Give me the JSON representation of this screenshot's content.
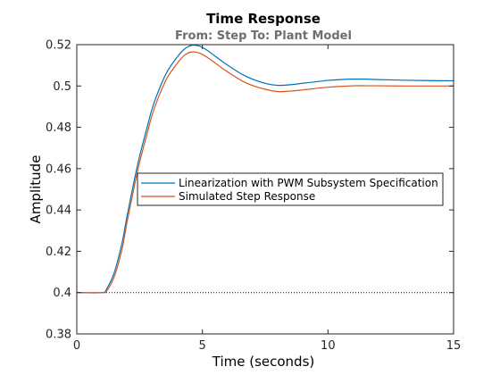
{
  "chart_data": {
    "type": "line",
    "title": "Time Response",
    "subtitle": "From: Step  To: Plant Model",
    "xlabel": "Time (seconds)",
    "ylabel": "Amplitude",
    "xlim": [
      0,
      15
    ],
    "ylim": [
      0.38,
      0.52
    ],
    "xticks": [
      0,
      5,
      10,
      15
    ],
    "xtick_labels": [
      "0",
      "5",
      "10",
      "15"
    ],
    "yticks": [
      0.38,
      0.4,
      0.42,
      0.44,
      0.46,
      0.48,
      0.5,
      0.52
    ],
    "ytick_labels": [
      "0.38",
      "0.4",
      "0.42",
      "0.44",
      "0.46",
      "0.48",
      "0.5",
      "0.52"
    ],
    "grid": false,
    "legend_position": "center-right",
    "baseline": {
      "y": 0.4,
      "style": "dotted",
      "color": "#000000"
    },
    "series": [
      {
        "name": "Linearization with PWM Subsystem Specification",
        "color": "#0072bd",
        "x": [
          0,
          1.0,
          1.2,
          1.5,
          1.8,
          2.0,
          2.3,
          2.5,
          2.8,
          3.0,
          3.3,
          3.6,
          4.0,
          4.3,
          4.6,
          4.9,
          5.2,
          5.5,
          5.8,
          6.2,
          6.6,
          7.0,
          7.5,
          8.0,
          8.5,
          9.0,
          9.5,
          10.0,
          10.5,
          11.0,
          11.5,
          12.0,
          13.0,
          14.0,
          15.0
        ],
        "values": [
          0.4,
          0.4,
          0.402,
          0.41,
          0.424,
          0.437,
          0.455,
          0.466,
          0.48,
          0.489,
          0.499,
          0.507,
          0.514,
          0.518,
          0.5197,
          0.5192,
          0.5172,
          0.5145,
          0.5118,
          0.5085,
          0.5055,
          0.5033,
          0.5013,
          0.5003,
          0.5006,
          0.5013,
          0.502,
          0.5027,
          0.5031,
          0.5033,
          0.5033,
          0.5031,
          0.5028,
          0.5026,
          0.5025
        ]
      },
      {
        "name": "Simulated Step Response",
        "color": "#d95319",
        "x": [
          0,
          1.0,
          1.2,
          1.5,
          1.8,
          2.0,
          2.3,
          2.5,
          2.8,
          3.0,
          3.3,
          3.6,
          4.0,
          4.3,
          4.6,
          4.9,
          5.2,
          5.5,
          5.8,
          6.2,
          6.6,
          7.0,
          7.5,
          8.0,
          8.5,
          9.0,
          9.5,
          10.0,
          10.5,
          11.0,
          11.5,
          12.0,
          13.0,
          14.0,
          15.0
        ],
        "values": [
          0.4,
          0.4,
          0.401,
          0.408,
          0.421,
          0.434,
          0.452,
          0.463,
          0.477,
          0.486,
          0.496,
          0.504,
          0.511,
          0.515,
          0.5165,
          0.5158,
          0.5138,
          0.5112,
          0.5085,
          0.5053,
          0.5023,
          0.5002,
          0.4984,
          0.4973,
          0.4975,
          0.4981,
          0.4988,
          0.4994,
          0.4998,
          0.5001,
          0.5001,
          0.5001,
          0.5,
          0.5,
          0.5
        ]
      }
    ]
  }
}
